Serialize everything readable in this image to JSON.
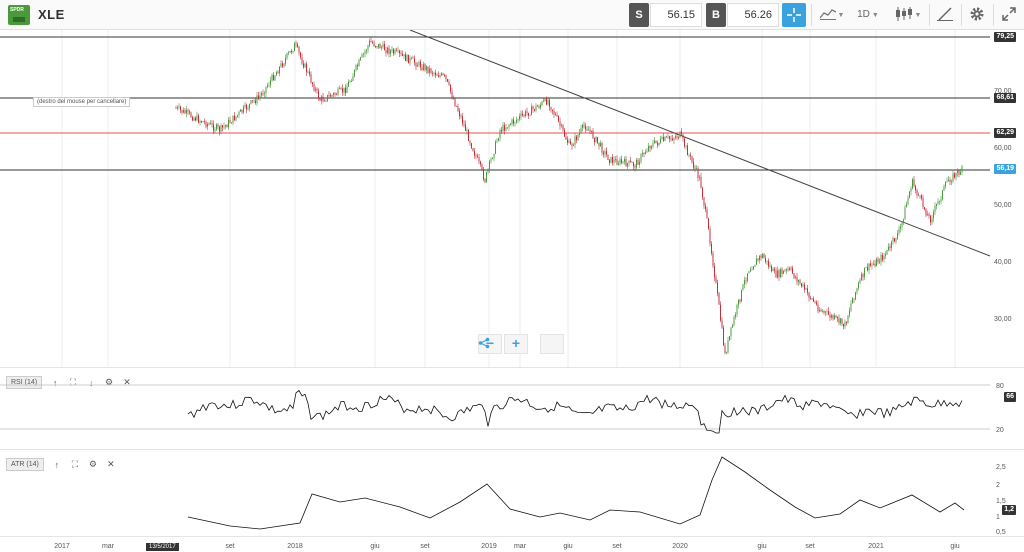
{
  "header": {
    "symbol": "XLE",
    "logo_text": "SPDR",
    "sell_tag": "S",
    "sell_price": "56.15",
    "buy_tag": "B",
    "buy_price": "56.26",
    "timeframe": "1D"
  },
  "main_chart": {
    "tooltip": "(destro del mouse per cancellare)",
    "price_axis": [
      "70,00",
      "60,00",
      "50,00",
      "40,00",
      "30,00"
    ],
    "tags": {
      "top": "79,25",
      "h1": "68,61",
      "h2": "62,29",
      "current": "56,19"
    },
    "colors": {
      "up": "#4a9a3c",
      "down": "#c0303a",
      "resistance": "#e05050",
      "accent": "#3aa2dc"
    },
    "zoom": {
      "minus": "−",
      "plus": "+"
    }
  },
  "rsi": {
    "label": "RSI (14)",
    "levels": [
      "80",
      "20"
    ],
    "value": "66"
  },
  "atr": {
    "label": "ATR (14)",
    "levels": [
      "2,5",
      "2",
      "1,5",
      "1",
      "0,5"
    ],
    "value": "1,2"
  },
  "time_axis": {
    "labels": [
      "2017",
      "mar",
      "set",
      "2018",
      "giu",
      "set",
      "2019",
      "mar",
      "giu",
      "set",
      "2020",
      "giu",
      "set",
      "2021",
      "giu"
    ],
    "marker": "13/5/2017"
  }
}
